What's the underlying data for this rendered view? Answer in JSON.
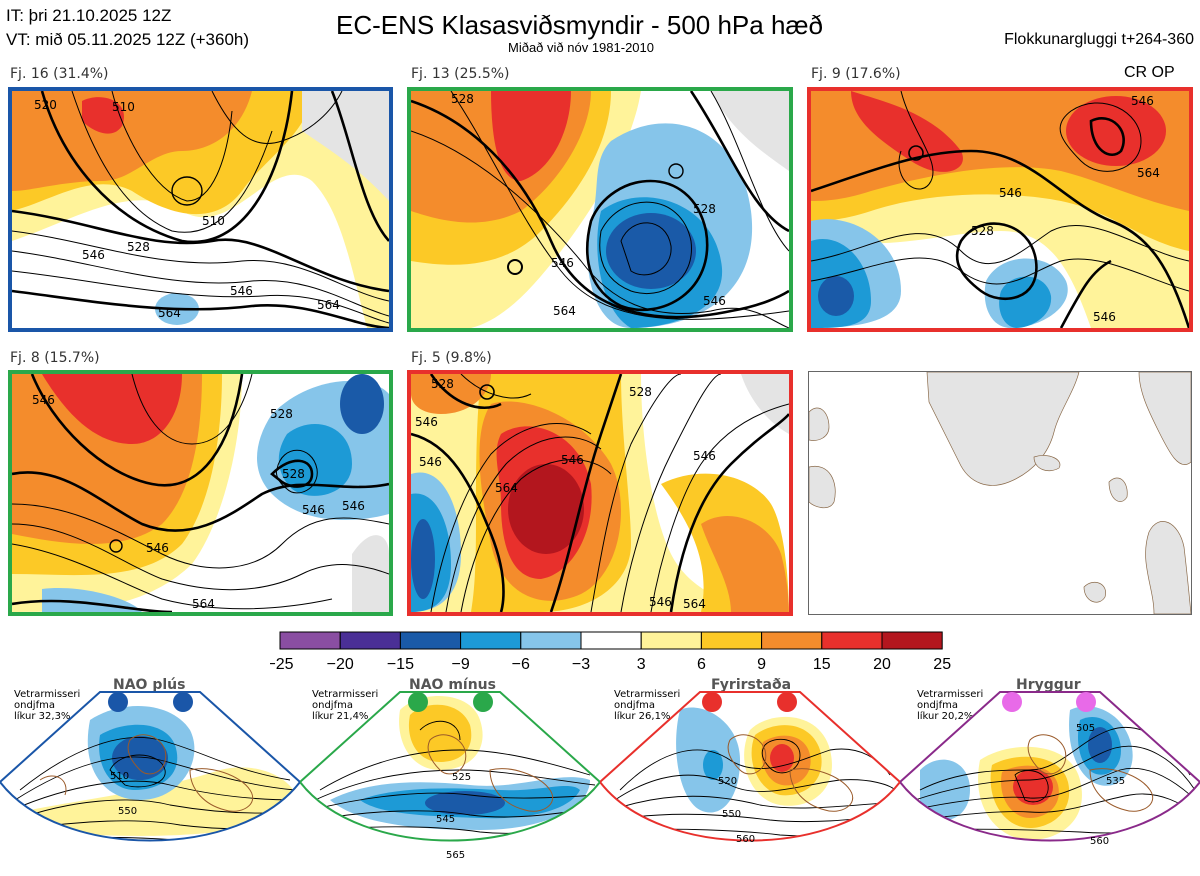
{
  "header": {
    "it_line": "IT: þri 21.10.2025 12Z",
    "vt_line": "VT: mið 05.11.2025 12Z  (+360h)",
    "title": "EC-ENS Klasasviðsmyndir - 500 hPa hæð",
    "subtitle": "Miðað við nóv 1981-2010",
    "window": "Flokkunargluggi t+264-360",
    "cr_op": "CR OP"
  },
  "clusters": [
    {
      "label": "Fj. 16 (31.4%)",
      "frame_color": "#1a56a8",
      "contour_labels": [
        "520",
        "510",
        "546",
        "528",
        "546",
        "564",
        "510",
        "564"
      ]
    },
    {
      "label": "Fj. 13 (25.5%)",
      "frame_color": "#2aa84a",
      "contour_labels": [
        "528",
        "528",
        "546",
        "564",
        "546"
      ]
    },
    {
      "label": "Fj. 9 (17.6%)",
      "frame_color": "#e8302c",
      "contour_labels": [
        "546",
        "564",
        "546",
        "528",
        "546"
      ]
    },
    {
      "label": "Fj. 8 (15.7%)",
      "frame_color": "#2aa84a",
      "contour_labels": [
        "528",
        "546",
        "528",
        "546",
        "546",
        "564",
        "546"
      ]
    },
    {
      "label": "Fj. 5 (9.8%)",
      "frame_color": "#e8302c",
      "contour_labels": [
        "528",
        "546",
        "546",
        "564",
        "546",
        "528",
        "546",
        "564",
        "546"
      ]
    }
  ],
  "colorbar": {
    "ticks": [
      "−25",
      "−20",
      "−15",
      "−9",
      "−6",
      "−3",
      "3",
      "6",
      "9",
      "15",
      "20",
      "25"
    ],
    "colors": [
      "#8a4ea2",
      "#4a2f96",
      "#1a5aa8",
      "#1d9ad6",
      "#86c5ea",
      "#ffffff",
      "#fff39a",
      "#fcc926",
      "#f48c2c",
      "#e8302c",
      "#b3161e"
    ]
  },
  "regimes": [
    {
      "name": "NAO plús",
      "note": "Vetrarmisseri\nondjfma\nlíkur 32,3%",
      "color": "#1a56a8",
      "dot_color": "#1a56a8",
      "contour_labels": [
        "510",
        "550"
      ]
    },
    {
      "name": "NAO mínus",
      "note": "Vetrarmisseri\nondjfma\nlíkur 21,4%",
      "color": "#2aa84a",
      "dot_color": "#2aa84a",
      "contour_labels": [
        "525",
        "545",
        "565"
      ]
    },
    {
      "name": "Fyrirstaða",
      "note": "Vetrarmisseri\nondjfma\nlíkur 26,1%",
      "color": "#e8302c",
      "dot_color": "#e8302c",
      "contour_labels": [
        "520",
        "550",
        "560"
      ]
    },
    {
      "name": "Hryggur",
      "note": "Vetrarmisseri\nondjfma\nlíkur 20,2%",
      "color": "#8a2a8a",
      "dot_color": "#e86ae8",
      "contour_labels": [
        "505",
        "535",
        "560"
      ]
    }
  ]
}
